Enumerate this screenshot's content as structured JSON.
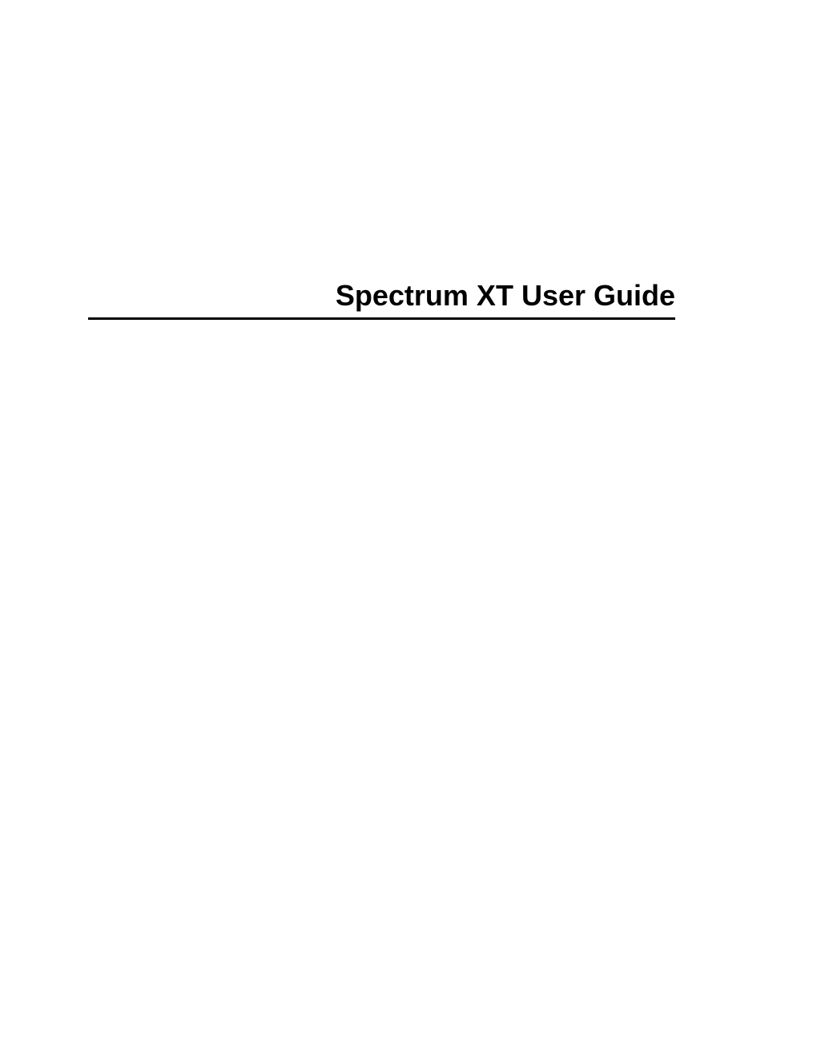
{
  "document": {
    "title": "Spectrum XT User Guide",
    "title_fontsize": 36,
    "title_fontweight": "bold",
    "title_color": "#000000",
    "underline_color": "#000000",
    "underline_width": 3,
    "background_color": "#ffffff"
  }
}
